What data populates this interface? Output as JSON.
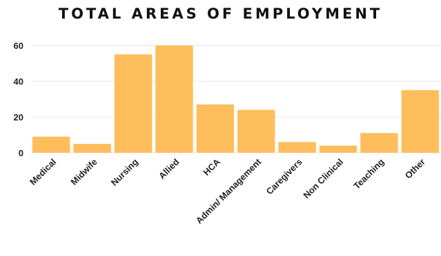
{
  "chart_data": {
    "type": "bar",
    "title": "TOTAL AREAS OF EMPLOYMENT",
    "categories": [
      "Medical",
      "Midwife",
      "Nursing",
      "Allied",
      "HCA",
      "Admin/ Management",
      "Caregivers",
      "Non Clinical",
      "Teaching",
      "Other"
    ],
    "values": [
      9,
      5,
      55,
      60,
      27,
      24,
      6,
      4,
      11,
      35
    ],
    "xlabel": "",
    "ylabel": "",
    "ylim": [
      0,
      60
    ],
    "yticks": [
      0,
      20,
      40,
      60
    ],
    "grid": true,
    "bar_color": "#FFBE5C",
    "grid_color": "#E6E6E6"
  }
}
